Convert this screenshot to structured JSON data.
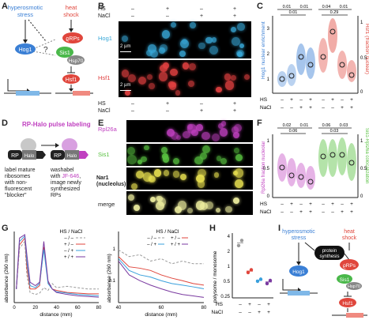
{
  "panels": {
    "A": {
      "letter": "A",
      "hyperosmotic": "hyperosmotic\nstress",
      "heat_shock": "heat\nshock",
      "hog1": "Hog1",
      "question": "?",
      "rps": "ϱRPs",
      "sis1": "Sis1",
      "hsp70": "Hsp70",
      "hsf1": "Hsf1"
    },
    "B": {
      "letter": "B",
      "hs_label": "HS",
      "nacl_label": "NaCl",
      "hs": [
        "–",
        "+",
        "–",
        "+"
      ],
      "nacl": [
        "–",
        "–",
        "+",
        "+"
      ],
      "row1_label": "Hog1",
      "row2_label": "Hsf1",
      "scale_label": "2 µm",
      "row1_color": "#38a8d8",
      "row2_color": "#e04040"
    },
    "C": {
      "letter": "C",
      "ylabel_left": "Hog1 nuclear enrichment",
      "ylabel_right": "Hsf1 (fraction nuclear)",
      "pvals_left": [
        "0.01",
        "0.01",
        "0.01"
      ],
      "pvals_right": [
        "0.04",
        "0.01",
        "0.29"
      ],
      "hs": [
        "–",
        "+",
        "–",
        "+",
        "–",
        "+",
        "–",
        "+"
      ],
      "nacl": [
        "–",
        "–",
        "+",
        "+",
        "–",
        "–",
        "+",
        "+"
      ],
      "hs_label": "HS",
      "nacl_label": "NaCl",
      "yticks_left": [
        "3",
        "2",
        "1"
      ],
      "yticks_right": [
        "1",
        "0.5",
        "0"
      ]
    },
    "D": {
      "letter": "D",
      "title": "RP-Halo pulse labeling",
      "rp": "RP",
      "halo": "Halo",
      "text1": "label mature\nribosomes\nwith non-\nfluorescent\n\"blocker\"",
      "text2a": "washabel\nwith ",
      "text2b": "JF-646",
      "text2c": "image newly\nsynthesized\nRPs"
    },
    "E": {
      "letter": "E",
      "rows": [
        "Rpl26a",
        "Sis1",
        "Nar1\n(nucleolus)",
        "merge"
      ]
    },
    "F": {
      "letter": "F",
      "ylabel_left": "Rpl26a fraction nucleolar",
      "ylabel_right": "Sis1-Rpl26a colocalization",
      "pvals_left": [
        "0.02",
        "0.01",
        "0.06"
      ],
      "pvals_right": [
        "0.06",
        "0.03",
        "0.03"
      ],
      "hs_label": "HS",
      "nacl_label": "NaCl",
      "hs": [
        "–",
        "+",
        "–",
        "+",
        "–",
        "+",
        "–",
        "+"
      ],
      "nacl": [
        "–",
        "–",
        "+",
        "+",
        "–",
        "–",
        "+",
        "+"
      ],
      "yticks_left": [
        "1",
        "0.5",
        "0"
      ],
      "yticks_right": [
        "1",
        "0.5",
        "0"
      ]
    },
    "G": {
      "letter": "G",
      "ylabel": "absorbance (260 nm)",
      "xlabel": "distance (mm)",
      "legend_title": "HS / NaCl",
      "legend": [
        "– / –",
        "+ / –",
        "– / +",
        "+ / +"
      ],
      "xticks_left": [
        "0",
        "20",
        "40",
        "60",
        "80"
      ],
      "xticks_right": [
        "40",
        "60",
        "80"
      ],
      "yticks_right": [
        "1",
        "0.1"
      ]
    },
    "H": {
      "letter": "H",
      "ylabel": "polysome / monosome",
      "yticks": [
        "4",
        "2",
        "1",
        "0.5",
        "0.25"
      ],
      "hs_label": "HS",
      "nacl_label": "NaCl",
      "hs": [
        "–",
        "+",
        "–",
        "+"
      ],
      "nacl": [
        "–",
        "–",
        "+",
        "+"
      ]
    },
    "I": {
      "letter": "I",
      "hyperosmotic": "hyperosmotic\nstress",
      "heat_shock": "heat\nshock",
      "protein_synthesis": "protein\nsynthesis",
      "hog1": "Hog1",
      "rps": "ϱRPs",
      "sis1": "Sis1",
      "hsp70": "Hsp70",
      "hsf1": "Hsf1"
    }
  },
  "colors": {
    "blue": "#3a7fd5",
    "red": "#e0463c",
    "purple": "#7a3aa0",
    "grey": "#9a9a9a",
    "magenta": "#c040c0",
    "green": "#58c040",
    "nacl_blue": "#3aa0dc"
  },
  "chart_data": [
    {
      "type": "line",
      "panel": "G-left",
      "xlabel": "distance (mm)",
      "ylabel": "absorbance (260 nm)",
      "xlim": [
        0,
        80
      ],
      "series": [
        {
          "name": "– / –",
          "x": [
            2,
            5,
            10,
            12,
            15,
            20,
            24,
            28,
            32,
            36,
            40,
            50,
            60,
            70,
            80
          ],
          "y": [
            0.2,
            0.8,
            0.9,
            0.4,
            0.15,
            0.12,
            0.14,
            0.22,
            0.18,
            0.28,
            0.22,
            0.24,
            0.22,
            0.2,
            0.2
          ]
        },
        {
          "name": "+ / –",
          "x": [
            2,
            5,
            10,
            12,
            15,
            20,
            24,
            28,
            32,
            36,
            40,
            50,
            60,
            70,
            80
          ],
          "y": [
            0.2,
            0.85,
            0.95,
            0.5,
            0.2,
            0.2,
            0.25,
            0.82,
            0.3,
            0.2,
            0.18,
            0.15,
            0.14,
            0.13,
            0.13
          ]
        },
        {
          "name": "– / +",
          "x": [
            2,
            5,
            10,
            12,
            15,
            20,
            24,
            28,
            32,
            36,
            40,
            50,
            60,
            70,
            80
          ],
          "y": [
            0.2,
            0.9,
            0.98,
            0.6,
            0.25,
            0.22,
            0.28,
            0.78,
            0.28,
            0.2,
            0.16,
            0.14,
            0.12,
            0.11,
            0.1
          ]
        },
        {
          "name": "+ / +",
          "x": [
            2,
            5,
            10,
            12,
            15,
            20,
            24,
            28,
            32,
            36,
            40,
            50,
            60,
            70,
            80
          ],
          "y": [
            0.2,
            0.95,
            1.0,
            0.7,
            0.3,
            0.25,
            0.3,
            0.9,
            0.32,
            0.2,
            0.15,
            0.12,
            0.1,
            0.09,
            0.08
          ]
        }
      ]
    },
    {
      "type": "line",
      "panel": "G-right",
      "xlabel": "distance (mm)",
      "ylabel": "absorbance (260 nm)",
      "xlim": [
        40,
        80
      ],
      "log_y": true,
      "series": [
        {
          "name": "– / –",
          "x": [
            40,
            45,
            50,
            55,
            60,
            65,
            70,
            75,
            80
          ],
          "y": [
            0.7,
            0.5,
            0.55,
            0.4,
            0.45,
            0.35,
            0.4,
            0.35,
            0.35
          ]
        },
        {
          "name": "+ / –",
          "x": [
            40,
            45,
            50,
            55,
            60,
            65,
            70,
            75,
            80
          ],
          "y": [
            0.5,
            0.3,
            0.28,
            0.25,
            0.2,
            0.17,
            0.15,
            0.13,
            0.12
          ]
        },
        {
          "name": "– / +",
          "x": [
            40,
            45,
            50,
            55,
            60,
            65,
            70,
            75,
            80
          ],
          "y": [
            0.45,
            0.25,
            0.2,
            0.18,
            0.15,
            0.13,
            0.12,
            0.11,
            0.1
          ]
        },
        {
          "name": "+ / +",
          "x": [
            40,
            45,
            50,
            55,
            60,
            65,
            70,
            75,
            80
          ],
          "y": [
            0.4,
            0.2,
            0.15,
            0.12,
            0.1,
            0.085,
            0.075,
            0.07,
            0.065
          ]
        }
      ]
    },
    {
      "type": "scatter",
      "panel": "H",
      "ylabel": "polysome / monosome",
      "log_y": true,
      "ylim": [
        0.25,
        4
      ],
      "categories": [
        "– / –",
        "+ / –",
        "– / +",
        "+ / +"
      ],
      "points": [
        {
          "cat": 0,
          "values": [
            2.6,
            3.3
          ]
        },
        {
          "cat": 1,
          "values": [
            0.75,
            0.85
          ]
        },
        {
          "cat": 2,
          "values": [
            0.5,
            0.55
          ]
        },
        {
          "cat": 3,
          "values": [
            0.45,
            0.52
          ]
        }
      ]
    }
  ]
}
